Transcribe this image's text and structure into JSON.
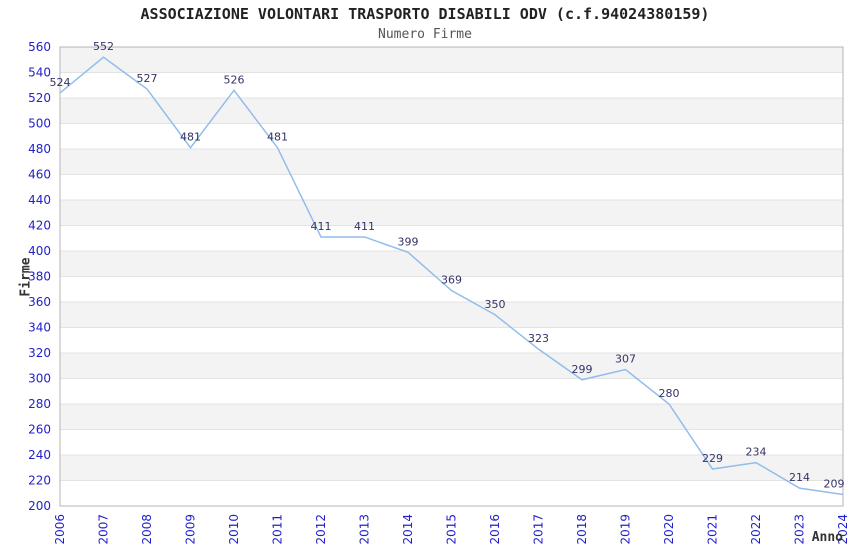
{
  "chart_data": {
    "type": "line",
    "title": "ASSOCIAZIONE VOLONTARI TRASPORTO DISABILI ODV (c.f.94024380159)",
    "subtitle": "Numero Firme",
    "xlabel": "Anno",
    "ylabel": "Firme",
    "categories": [
      "2006",
      "2007",
      "2008",
      "2009",
      "2010",
      "2011",
      "2012",
      "2013",
      "2014",
      "2015",
      "2016",
      "2017",
      "2018",
      "2019",
      "2020",
      "2021",
      "2022",
      "2023",
      "2024"
    ],
    "values": [
      524,
      552,
      527,
      481,
      526,
      481,
      411,
      411,
      399,
      369,
      350,
      323,
      299,
      307,
      280,
      229,
      234,
      214,
      209
    ],
    "ylim": [
      200,
      560
    ],
    "ytick_step": 20,
    "grid": "horizontal-bands-alternating",
    "legend_position": "none",
    "markers": "none",
    "data_labels_visible": true,
    "colors": {
      "line": "#92bdea",
      "tick_labels": "#2222cc",
      "data_labels": "#333366",
      "band": "#f3f3f3",
      "gridline": "#e3e3e3",
      "axis_border": "#b5b5b5",
      "title": "#222222",
      "subtitle": "#555555",
      "axis_titles": "#333333",
      "background": "#ffffff"
    }
  }
}
